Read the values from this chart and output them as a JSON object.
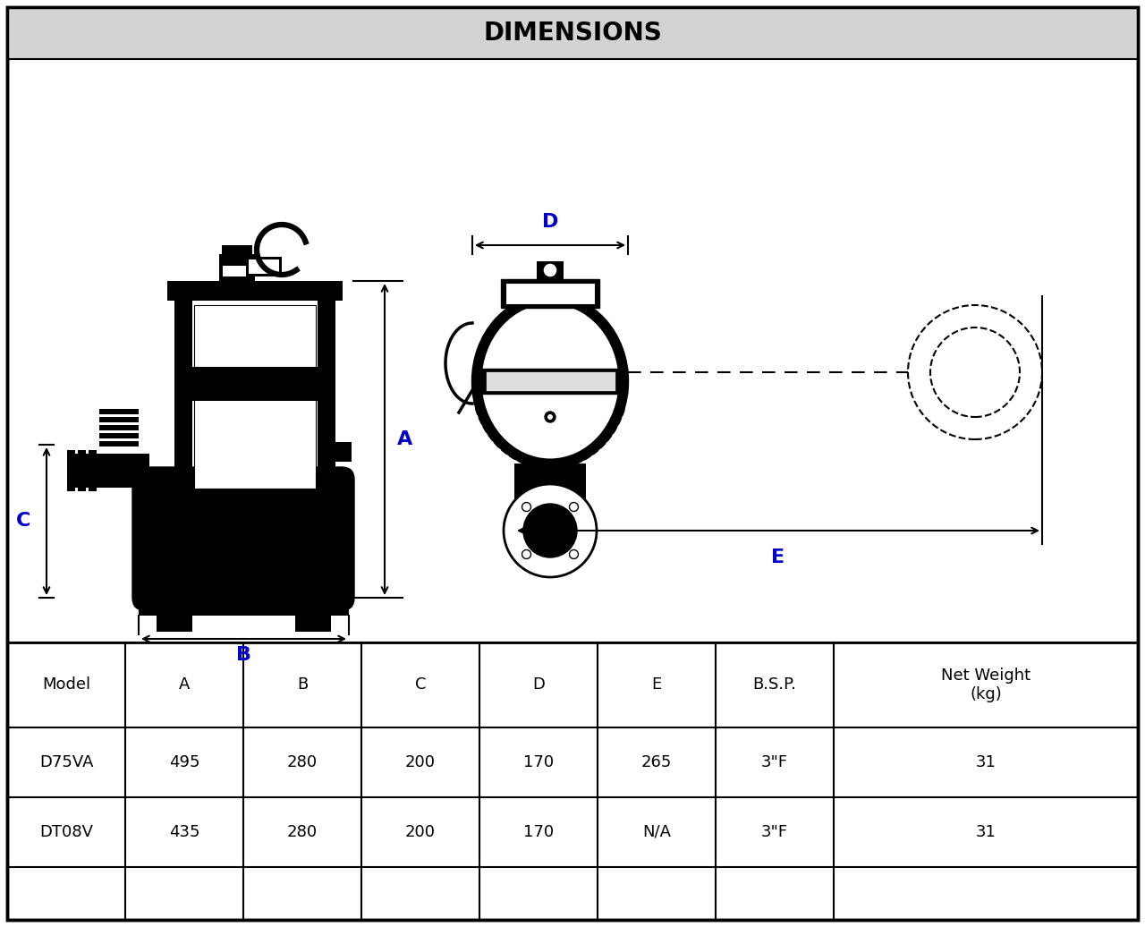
{
  "title": "DIMENSIONS",
  "title_bg": "#d3d3d3",
  "border_color": "#000000",
  "table_headers": [
    "Model",
    "A",
    "B",
    "C",
    "D",
    "E",
    "B.S.P.",
    "Net Weight\n(kg)"
  ],
  "table_rows": [
    [
      "D75VA",
      "495",
      "280",
      "200",
      "170",
      "265",
      "3\"F",
      "31"
    ],
    [
      "DT08V",
      "435",
      "280",
      "200",
      "170",
      "N/A",
      "3\"F",
      "31"
    ]
  ],
  "label_color": "#0000cc",
  "bg_color": "#ffffff",
  "text_color": "#000000",
  "fig_w": 12.8,
  "fig_h": 10.36,
  "dpi": 100
}
